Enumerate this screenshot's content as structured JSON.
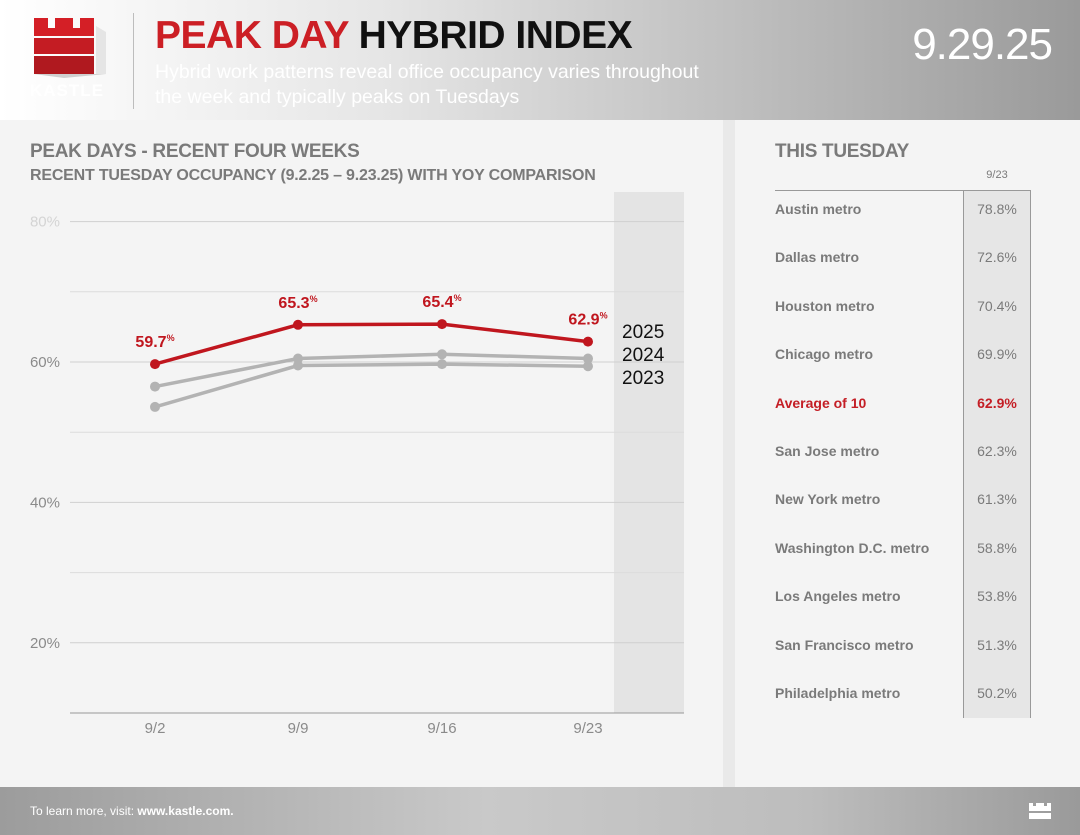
{
  "header": {
    "brand": "KASTLE",
    "title_red": "PEAK DAY",
    "title_black": "HYBRID INDEX",
    "subtitle": "Hybrid work patterns reveal office occupancy varies throughout the week and typically peaks on Tuesdays",
    "date": "9.29.25"
  },
  "colors": {
    "accent": "#cc1f25",
    "series_2025": "#c0161e",
    "series_prior": "#b3b3b3",
    "text_gray": "#7a7a7a"
  },
  "chart_data": {
    "type": "line",
    "title": "PEAK DAYS - RECENT FOUR WEEKS",
    "subtitle": "RECENT TUESDAY OCCUPANCY (9.2.25 – 9.23.25) WITH YOY COMPARISON",
    "categories": [
      "9/2",
      "9/9",
      "9/16",
      "9/23"
    ],
    "ylim": [
      10,
      80
    ],
    "yticks": [
      20,
      40,
      60,
      80
    ],
    "ytick_labels": [
      "20%",
      "40%",
      "60%",
      "80%"
    ],
    "grid": true,
    "series": [
      {
        "name": "2025",
        "values": [
          59.7,
          65.3,
          65.4,
          62.9
        ],
        "labels": [
          "59.7",
          "65.3",
          "65.4",
          "62.9"
        ],
        "color": "#c0161e"
      },
      {
        "name": "2024",
        "values": [
          56.5,
          60.5,
          61.1,
          60.5
        ],
        "color": "#b3b3b3"
      },
      {
        "name": "2023",
        "values": [
          53.6,
          59.5,
          59.7,
          59.4
        ],
        "color": "#b3b3b3"
      }
    ],
    "label_suffix": "%"
  },
  "table": {
    "title": "THIS TUESDAY",
    "column": "9/23",
    "rows": [
      {
        "name": "Austin metro",
        "value": "78.8%"
      },
      {
        "name": "Dallas metro",
        "value": "72.6%"
      },
      {
        "name": "Houston metro",
        "value": "70.4%"
      },
      {
        "name": "Chicago metro",
        "value": "69.9%"
      },
      {
        "name": "Average of 10",
        "value": "62.9%",
        "highlight": true
      },
      {
        "name": "San Jose metro",
        "value": "62.3%"
      },
      {
        "name": "New York metro",
        "value": "61.3%"
      },
      {
        "name": "Washington D.C. metro",
        "value": "58.8%"
      },
      {
        "name": "Los Angeles metro",
        "value": "53.8%"
      },
      {
        "name": "San Francisco metro",
        "value": "51.3%"
      },
      {
        "name": "Philadelphia metro",
        "value": "50.2%"
      }
    ]
  },
  "footer": {
    "text": "To learn more, visit: ",
    "link": "www.kastle.com."
  }
}
